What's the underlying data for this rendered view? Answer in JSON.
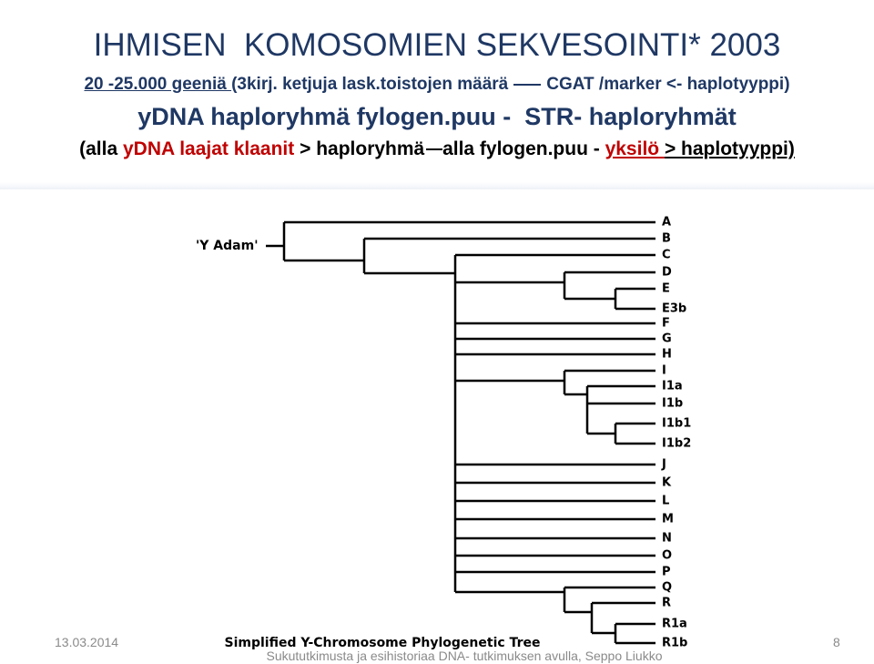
{
  "header": {
    "title": "IHMISEN  KOMOSOMIEN SEKVESOINTI* 2003",
    "line2": [
      "20 -25.000 geeniä ",
      "(3kirj. ketjuja lask.toistojen määrä",
      "CGAT /marker <- haplotyyppi)"
    ],
    "line3": "yDNA haploryhmä fylogen.puu -  STR- haploryhmät",
    "line4": [
      "(alla ",
      "yDNA laajat klaanit",
      " > haploryhmä ",
      "alla",
      " fylogen.puu - ",
      "yksilö ",
      "> haplotyyppi)"
    ]
  },
  "tree": {
    "root": "'Y Adam'",
    "leaves": [
      "A",
      "B",
      "C",
      "D",
      "E",
      "E3b",
      "F",
      "G",
      "H",
      "I",
      "I1a",
      "I1b",
      "I1b1",
      "I1b2",
      "J",
      "K",
      "L",
      "M",
      "N",
      "O",
      "P",
      "Q",
      "R",
      "R1a",
      "R1b"
    ],
    "caption": "Simplified Y-Chromosome Phylogenetic Tree"
  },
  "footer": {
    "date": "13.03.2014",
    "text": "Sukututkimusta ja esihistoriaa DNA- tutkimuksen avulla, Seppo Liukko",
    "page": "8"
  }
}
